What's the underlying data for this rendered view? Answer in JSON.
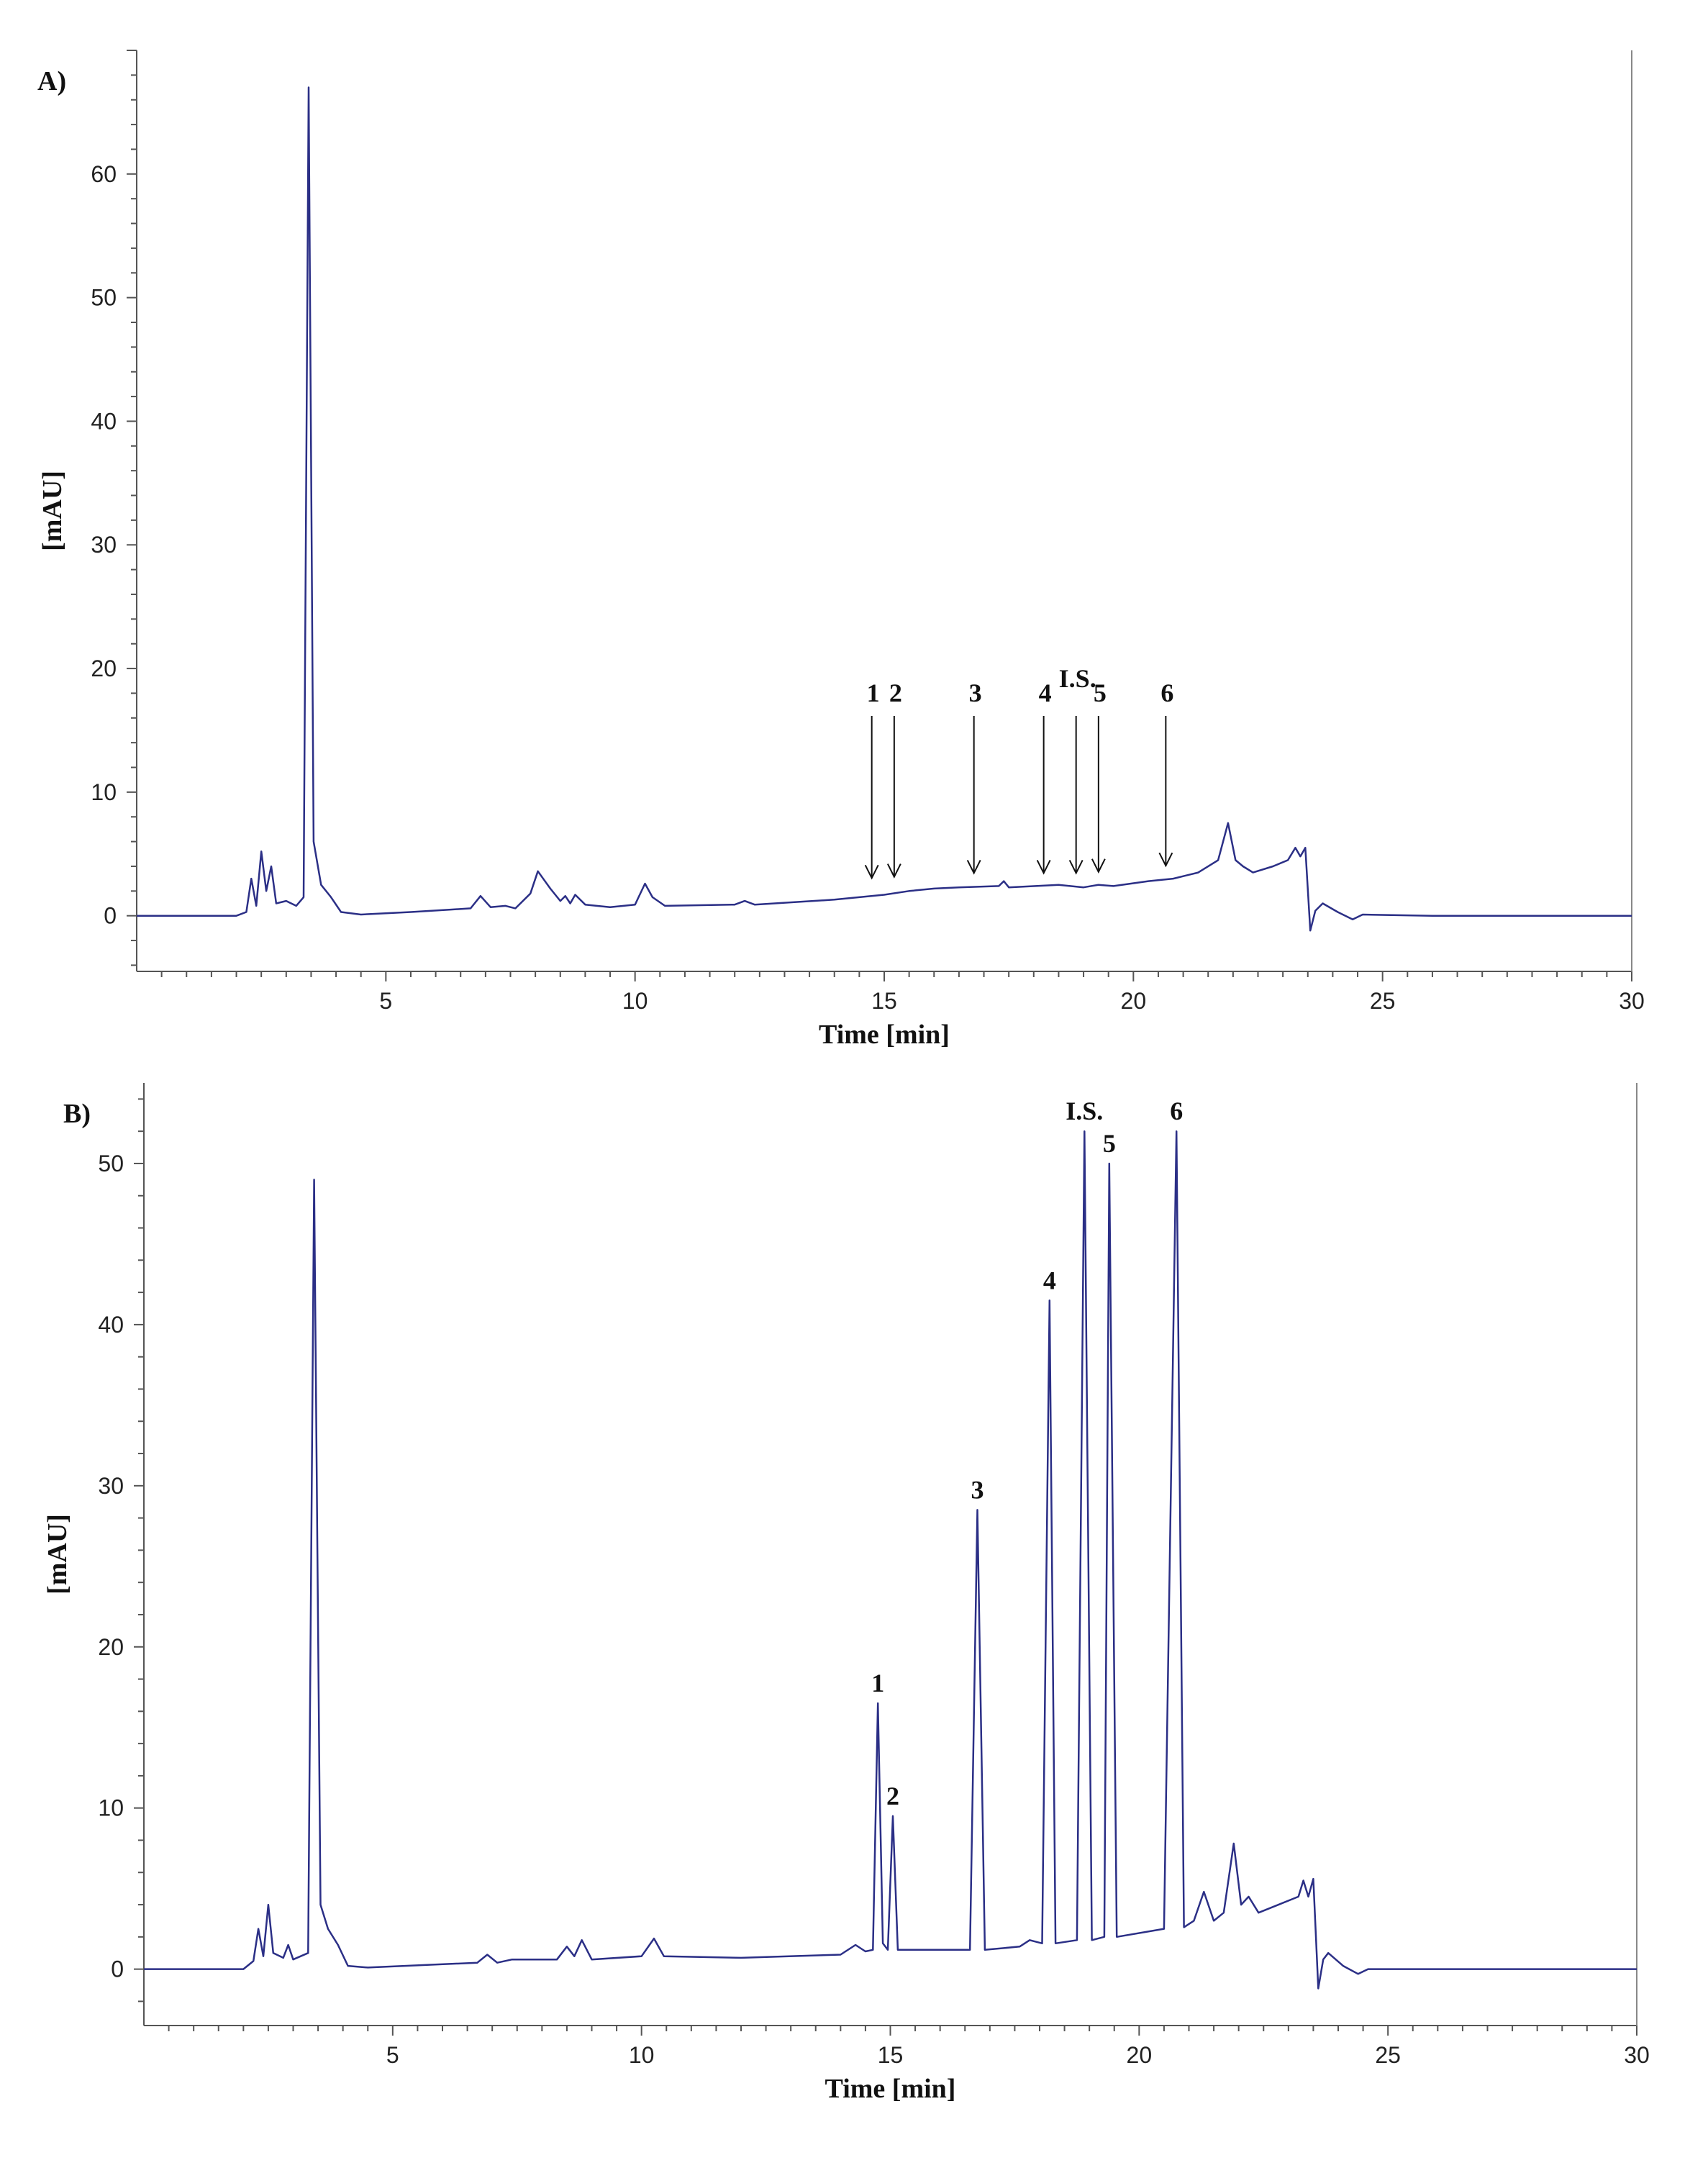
{
  "chart_data": [
    {
      "panel_label": "A)",
      "type": "line",
      "xlabel": "Time [min]",
      "ylabel": "[mAU]",
      "xlim": [
        0,
        30
      ],
      "ylim": [
        -4.5,
        70
      ],
      "x_ticks": [
        5,
        10,
        15,
        20,
        25,
        30
      ],
      "y_ticks": [
        0,
        10,
        20,
        30,
        40,
        50,
        60
      ],
      "series": [
        {
          "color": "#2b2f86",
          "points": [
            [
              0.0,
              0.0
            ],
            [
              2.0,
              0.0
            ],
            [
              2.2,
              0.3
            ],
            [
              2.3,
              3.0
            ],
            [
              2.4,
              0.8
            ],
            [
              2.5,
              5.2
            ],
            [
              2.6,
              2.0
            ],
            [
              2.7,
              4.0
            ],
            [
              2.8,
              1.0
            ],
            [
              3.0,
              1.2
            ],
            [
              3.2,
              0.8
            ],
            [
              3.35,
              1.5
            ],
            [
              3.45,
              67.0
            ],
            [
              3.55,
              6.0
            ],
            [
              3.7,
              2.5
            ],
            [
              3.9,
              1.5
            ],
            [
              4.1,
              0.3
            ],
            [
              4.5,
              0.1
            ],
            [
              5.5,
              0.3
            ],
            [
              6.3,
              0.5
            ],
            [
              6.7,
              0.6
            ],
            [
              6.9,
              1.6
            ],
            [
              7.1,
              0.7
            ],
            [
              7.4,
              0.8
            ],
            [
              7.6,
              0.6
            ],
            [
              7.9,
              1.8
            ],
            [
              8.05,
              3.6
            ],
            [
              8.3,
              2.2
            ],
            [
              8.5,
              1.2
            ],
            [
              8.6,
              1.6
            ],
            [
              8.7,
              1.0
            ],
            [
              8.8,
              1.7
            ],
            [
              9.0,
              0.9
            ],
            [
              9.5,
              0.7
            ],
            [
              10.0,
              0.9
            ],
            [
              10.2,
              2.6
            ],
            [
              10.35,
              1.5
            ],
            [
              10.6,
              0.8
            ],
            [
              12.0,
              0.9
            ],
            [
              12.2,
              1.2
            ],
            [
              12.4,
              0.9
            ],
            [
              14.0,
              1.3
            ],
            [
              15.0,
              1.7
            ],
            [
              15.5,
              2.0
            ],
            [
              16.0,
              2.2
            ],
            [
              16.5,
              2.3
            ],
            [
              17.3,
              2.4
            ],
            [
              17.4,
              2.8
            ],
            [
              17.5,
              2.3
            ],
            [
              18.5,
              2.5
            ],
            [
              19.0,
              2.3
            ],
            [
              19.3,
              2.5
            ],
            [
              19.6,
              2.4
            ],
            [
              20.3,
              2.8
            ],
            [
              20.8,
              3.0
            ],
            [
              21.3,
              3.5
            ],
            [
              21.7,
              4.5
            ],
            [
              21.9,
              7.5
            ],
            [
              22.05,
              4.5
            ],
            [
              22.2,
              4.0
            ],
            [
              22.4,
              3.5
            ],
            [
              22.8,
              4.0
            ],
            [
              23.1,
              4.5
            ],
            [
              23.25,
              5.5
            ],
            [
              23.35,
              4.8
            ],
            [
              23.45,
              5.5
            ],
            [
              23.55,
              -1.2
            ],
            [
              23.65,
              0.4
            ],
            [
              23.8,
              1.0
            ],
            [
              24.1,
              0.3
            ],
            [
              24.4,
              -0.3
            ],
            [
              24.6,
              0.1
            ],
            [
              26.0,
              0.0
            ],
            [
              30.0,
              0.0
            ]
          ]
        }
      ],
      "annotations": [
        {
          "label": "1",
          "x": 14.75,
          "y": 2.0
        },
        {
          "label": "2",
          "x": 15.2,
          "y": 2.1
        },
        {
          "label": "3",
          "x": 16.8,
          "y": 2.4
        },
        {
          "label": "4",
          "x": 18.2,
          "y": 2.4
        },
        {
          "label": "I.S.",
          "x": 18.85,
          "y": 2.4
        },
        {
          "label": "5",
          "x": 19.3,
          "y": 2.5
        },
        {
          "label": "6",
          "x": 20.65,
          "y": 3.0
        }
      ]
    },
    {
      "panel_label": "B)",
      "type": "line",
      "xlabel": "Time [min]",
      "ylabel": "[mAU]",
      "xlim": [
        0,
        30
      ],
      "ylim": [
        -3.5,
        55
      ],
      "x_ticks": [
        5,
        10,
        15,
        20,
        25,
        30
      ],
      "y_ticks": [
        0,
        10,
        20,
        30,
        40,
        50
      ],
      "series": [
        {
          "color": "#2b2f86",
          "points": [
            [
              0.0,
              0.0
            ],
            [
              2.0,
              0.0
            ],
            [
              2.2,
              0.5
            ],
            [
              2.3,
              2.5
            ],
            [
              2.4,
              0.8
            ],
            [
              2.5,
              4.0
            ],
            [
              2.6,
              1.0
            ],
            [
              2.8,
              0.7
            ],
            [
              2.9,
              1.5
            ],
            [
              3.0,
              0.6
            ],
            [
              3.3,
              1.0
            ],
            [
              3.42,
              49.0
            ],
            [
              3.55,
              4.0
            ],
            [
              3.7,
              2.5
            ],
            [
              3.9,
              1.5
            ],
            [
              4.1,
              0.2
            ],
            [
              4.5,
              0.1
            ],
            [
              6.7,
              0.4
            ],
            [
              6.9,
              0.9
            ],
            [
              7.1,
              0.4
            ],
            [
              7.4,
              0.6
            ],
            [
              8.3,
              0.6
            ],
            [
              8.5,
              1.4
            ],
            [
              8.65,
              0.8
            ],
            [
              8.8,
              1.8
            ],
            [
              9.0,
              0.6
            ],
            [
              10.0,
              0.8
            ],
            [
              10.25,
              1.9
            ],
            [
              10.45,
              0.8
            ],
            [
              12.0,
              0.7
            ],
            [
              14.0,
              0.9
            ],
            [
              14.3,
              1.5
            ],
            [
              14.5,
              1.1
            ],
            [
              14.65,
              1.2
            ],
            [
              14.75,
              16.5
            ],
            [
              14.85,
              1.6
            ],
            [
              14.95,
              1.2
            ],
            [
              15.05,
              9.5
            ],
            [
              15.15,
              1.2
            ],
            [
              16.6,
              1.2
            ],
            [
              16.75,
              28.5
            ],
            [
              16.9,
              1.2
            ],
            [
              17.6,
              1.4
            ],
            [
              17.8,
              1.8
            ],
            [
              18.05,
              1.6
            ],
            [
              18.2,
              41.5
            ],
            [
              18.32,
              1.6
            ],
            [
              18.75,
              1.8
            ],
            [
              18.9,
              52.0
            ],
            [
              19.05,
              1.8
            ],
            [
              19.3,
              2.0
            ],
            [
              19.4,
              50.0
            ],
            [
              19.55,
              2.0
            ],
            [
              20.5,
              2.5
            ],
            [
              20.75,
              52.0
            ],
            [
              20.9,
              2.6
            ],
            [
              21.1,
              3.0
            ],
            [
              21.3,
              4.8
            ],
            [
              21.5,
              3.0
            ],
            [
              21.7,
              3.5
            ],
            [
              21.9,
              7.8
            ],
            [
              22.05,
              4.0
            ],
            [
              22.2,
              4.5
            ],
            [
              22.4,
              3.5
            ],
            [
              23.2,
              4.5
            ],
            [
              23.3,
              5.5
            ],
            [
              23.4,
              4.5
            ],
            [
              23.5,
              5.6
            ],
            [
              23.6,
              -1.2
            ],
            [
              23.7,
              0.6
            ],
            [
              23.8,
              1.0
            ],
            [
              24.1,
              0.2
            ],
            [
              24.4,
              -0.3
            ],
            [
              24.6,
              0.0
            ],
            [
              30.0,
              0.0
            ]
          ]
        }
      ],
      "annotations": [
        {
          "label": "1",
          "x": 14.75,
          "y": 16.5
        },
        {
          "label": "2",
          "x": 15.05,
          "y": 9.5
        },
        {
          "label": "3",
          "x": 16.75,
          "y": 28.5
        },
        {
          "label": "4",
          "x": 18.2,
          "y": 41.5
        },
        {
          "label": "I.S.",
          "x": 18.9,
          "y": 52.0
        },
        {
          "label": "5",
          "x": 19.4,
          "y": 50.0
        },
        {
          "label": "6",
          "x": 20.75,
          "y": 52.0
        }
      ]
    }
  ]
}
